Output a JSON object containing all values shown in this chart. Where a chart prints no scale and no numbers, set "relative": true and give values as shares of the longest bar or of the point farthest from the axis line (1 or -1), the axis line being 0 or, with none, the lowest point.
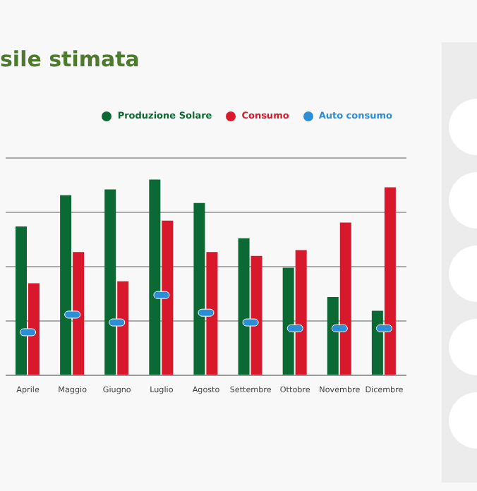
{
  "chart_data": {
    "type": "bar",
    "title": "sile stimata",
    "relative": true,
    "grid": "y",
    "legend": "top right",
    "categories": [
      "Aprile",
      "Maggio",
      "Giugno",
      "Luglio",
      "Agosto",
      "Settembre",
      "Ottobre",
      "Novembre",
      "Dicembre"
    ],
    "series": [
      {
        "name": "Produzione Solare",
        "color": "#0b6a34",
        "values": [
          0.76,
          0.92,
          0.95,
          1,
          0.88,
          0.7,
          0.55,
          0.4,
          0.33
        ]
      },
      {
        "name": "Consumo",
        "color": "#d7192b",
        "values": [
          0.47,
          0.63,
          0.48,
          0.79,
          0.63,
          0.61,
          0.64,
          0.78,
          0.96
        ]
      },
      {
        "name": "Auto consumo",
        "type": "scatter",
        "color": "#2a8fd6",
        "values": [
          0.22,
          0.31,
          0.27,
          0.41,
          0.32,
          0.27,
          0.24,
          0.24,
          0.24
        ]
      }
    ]
  }
}
